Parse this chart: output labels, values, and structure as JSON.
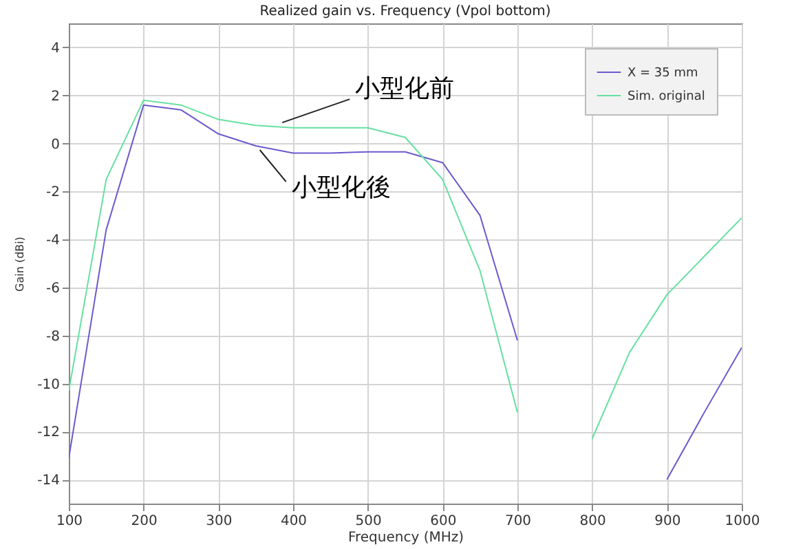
{
  "chart_data": {
    "type": "line",
    "title": "Realized gain vs. Frequency (Vpol bottom)",
    "xlabel": "Frequency (MHz)",
    "ylabel": "Gain (dBi)",
    "xlim": [
      100,
      1000
    ],
    "ylim": [
      -15,
      5
    ],
    "xticks": [
      100,
      200,
      300,
      400,
      500,
      600,
      700,
      800,
      900,
      1000
    ],
    "yticks": [
      -14,
      -12,
      -10,
      -8,
      -6,
      -4,
      -2,
      0,
      2,
      4
    ],
    "grid": true,
    "legend": "top right",
    "line_style": "solid",
    "series": [
      {
        "name": "X = 35 mm",
        "color": "#6a5acd",
        "x": [
          100,
          150,
          200,
          250,
          300,
          350,
          400,
          450,
          500,
          550,
          600,
          650,
          700,
          750,
          800,
          850,
          900,
          950,
          1000
        ],
        "values": [
          -13.1,
          -3.6,
          1.6,
          1.4,
          0.4,
          -0.1,
          -0.4,
          -0.4,
          -0.35,
          -0.35,
          -0.8,
          -3,
          -8.2,
          null,
          null,
          null,
          -14,
          -11.2,
          -8.5
        ]
      },
      {
        "name": "Sim. original",
        "color": "#66e0a0",
        "x": [
          100,
          150,
          200,
          250,
          300,
          350,
          400,
          450,
          500,
          550,
          600,
          650,
          700,
          750,
          800,
          850,
          900,
          950,
          1000
        ],
        "values": [
          -10.3,
          -1.5,
          1.8,
          1.6,
          1.0,
          0.75,
          0.65,
          0.65,
          0.65,
          0.25,
          -1.5,
          -5.3,
          -11.2,
          null,
          -12.3,
          -8.7,
          -6.3,
          -4.7,
          -3.1
        ]
      }
    ],
    "annotations": [
      {
        "text": "小型化前",
        "x": 380,
        "y": 0.7
      },
      {
        "text": "小型化後",
        "x": 350,
        "y": -0.1
      }
    ]
  }
}
